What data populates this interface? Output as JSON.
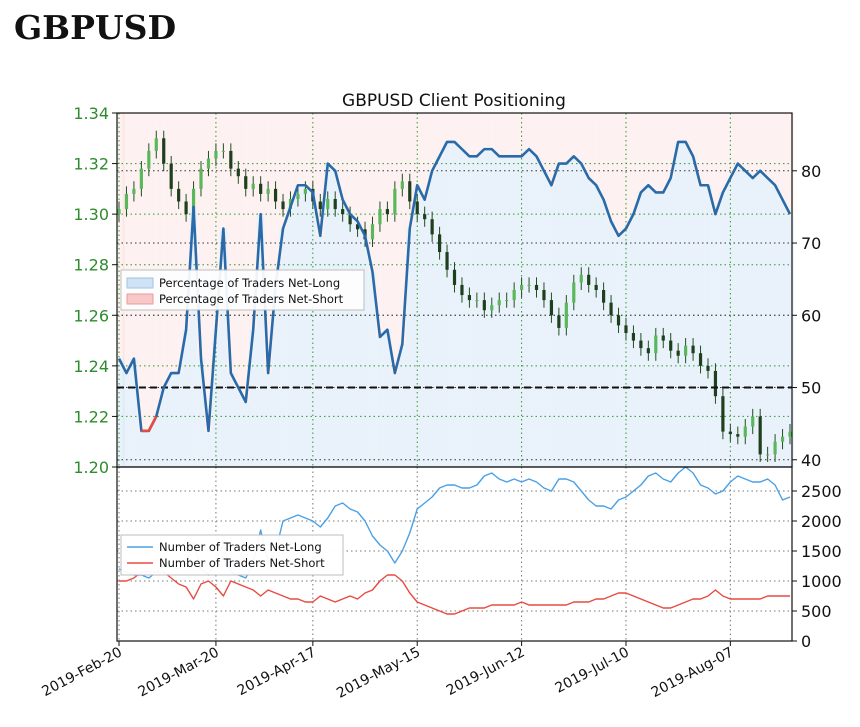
{
  "page_heading": "GBPUSD",
  "chart_data": [
    {
      "type": "line",
      "title": "GBPUSD Client Positioning",
      "x_tick_labels": [
        "2019-Feb-20",
        "2019-Mar-20",
        "2019-Apr-17",
        "2019-May-15",
        "2019-Jun-12",
        "2019-Jul-10",
        "2019-Aug-07"
      ],
      "price_axis": {
        "ticks": [
          "1.20",
          "1.22",
          "1.24",
          "1.26",
          "1.28",
          "1.30",
          "1.32",
          "1.34"
        ],
        "ylim": [
          1.2,
          1.34
        ],
        "color": "#2e8b2e"
      },
      "percent_axis": {
        "ticks": [
          "40",
          "50",
          "60",
          "70",
          "80"
        ],
        "ylim": [
          39,
          88
        ]
      },
      "legend": {
        "placement": "center-left",
        "entries": [
          {
            "label": "Percentage of Traders Net-Long",
            "color": "#cfe3f5"
          },
          {
            "label": "Percentage of Traders Net-Short",
            "color": "#f8c7c7"
          }
        ]
      },
      "reference_line": {
        "value": 50,
        "style": "dashed",
        "color": "#111111"
      },
      "series": [
        {
          "name": "Percentage of Traders Net-Long",
          "color": "#2a6aa8",
          "values": [
            54,
            52,
            54,
            44,
            44,
            46,
            50,
            52,
            52,
            58,
            75,
            54,
            44,
            58,
            72,
            52,
            50,
            48,
            58,
            74,
            52,
            64,
            72,
            75,
            78,
            78,
            77,
            71,
            81,
            80,
            76,
            74,
            73,
            71,
            66,
            57,
            58,
            52,
            56,
            72,
            78,
            76,
            80,
            82,
            84,
            84,
            83,
            82,
            82,
            83,
            83,
            82,
            82,
            82,
            82,
            83,
            82,
            80,
            78,
            81,
            81,
            82,
            81,
            79,
            78,
            76,
            73,
            71,
            72,
            74,
            77,
            78,
            77,
            77,
            79,
            84,
            84,
            82,
            78,
            78,
            74,
            77,
            79,
            81,
            80,
            79,
            80,
            79,
            78,
            76,
            74
          ]
        },
        {
          "name": "GBPUSD price",
          "color": "#2e8b2e",
          "values": [
            1.302,
            1.308,
            1.31,
            1.318,
            1.325,
            1.33,
            1.32,
            1.31,
            1.305,
            1.3,
            1.31,
            1.318,
            1.322,
            1.325,
            1.325,
            1.318,
            1.315,
            1.31,
            1.312,
            1.308,
            1.31,
            1.305,
            1.302,
            1.306,
            1.308,
            1.31,
            1.305,
            1.302,
            1.306,
            1.302,
            1.3,
            1.296,
            1.294,
            1.29,
            1.296,
            1.302,
            1.3,
            1.31,
            1.313,
            1.305,
            1.3,
            1.298,
            1.292,
            1.285,
            1.278,
            1.272,
            1.268,
            1.266,
            1.266,
            1.262,
            1.264,
            1.266,
            1.266,
            1.27,
            1.272,
            1.272,
            1.27,
            1.266,
            1.26,
            1.255,
            1.265,
            1.273,
            1.276,
            1.272,
            1.27,
            1.265,
            1.26,
            1.256,
            1.253,
            1.25,
            1.247,
            1.245,
            1.252,
            1.25,
            1.246,
            1.244,
            1.248,
            1.245,
            1.24,
            1.238,
            1.228,
            1.214,
            1.213,
            1.212,
            1.216,
            1.22,
            1.205,
            1.205,
            1.21,
            1.212,
            1.214
          ]
        }
      ]
    },
    {
      "type": "line",
      "y_ticks": [
        "0",
        "500",
        "1000",
        "1500",
        "2000",
        "2500"
      ],
      "ylim": [
        0,
        2900
      ],
      "legend": {
        "placement": "center-left"
      },
      "series": [
        {
          "name": "Number of Traders Net-Long",
          "color": "#4aa0e6",
          "values": [
            1200,
            1150,
            1100,
            1100,
            1050,
            1150,
            1250,
            1250,
            1200,
            1350,
            1650,
            1200,
            1100,
            1350,
            1600,
            1150,
            1100,
            1050,
            1300,
            1850,
            1300,
            1500,
            2000,
            2050,
            2100,
            2050,
            2000,
            1900,
            2050,
            2250,
            2300,
            2200,
            2150,
            2000,
            1750,
            1600,
            1500,
            1300,
            1500,
            1800,
            2200,
            2300,
            2400,
            2550,
            2600,
            2600,
            2550,
            2550,
            2600,
            2750,
            2800,
            2700,
            2650,
            2700,
            2650,
            2700,
            2650,
            2550,
            2500,
            2700,
            2700,
            2650,
            2500,
            2350,
            2250,
            2250,
            2200,
            2350,
            2400,
            2500,
            2600,
            2750,
            2800,
            2700,
            2650,
            2800,
            2900,
            2800,
            2600,
            2550,
            2450,
            2500,
            2650,
            2750,
            2700,
            2650,
            2650,
            2700,
            2600,
            2350,
            2400
          ]
        },
        {
          "name": "Number of Traders Net-Short",
          "color": "#e84a40",
          "values": [
            1000,
            1000,
            1050,
            1150,
            1150,
            1150,
            1150,
            1050,
            950,
            900,
            700,
            950,
            1000,
            900,
            750,
            1000,
            950,
            900,
            850,
            750,
            850,
            800,
            750,
            700,
            700,
            650,
            650,
            750,
            700,
            650,
            700,
            750,
            700,
            800,
            850,
            1000,
            1100,
            1100,
            1000,
            800,
            650,
            600,
            550,
            500,
            450,
            450,
            500,
            550,
            550,
            550,
            600,
            600,
            600,
            600,
            650,
            600,
            600,
            600,
            600,
            600,
            600,
            650,
            650,
            650,
            700,
            700,
            750,
            800,
            800,
            750,
            700,
            650,
            600,
            550,
            550,
            600,
            650,
            700,
            700,
            750,
            850,
            750,
            700,
            700,
            700,
            700,
            700,
            750,
            750,
            750,
            750
          ]
        }
      ]
    }
  ]
}
